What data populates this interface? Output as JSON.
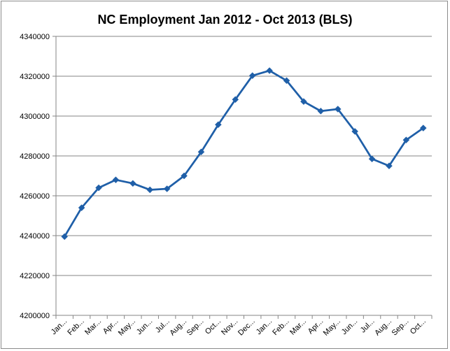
{
  "chart_data": {
    "type": "line",
    "title": "NC Employment Jan 2012 - Oct 2013 (BLS)",
    "xlabel": "",
    "ylabel": "",
    "ylim": [
      4200000,
      4340000
    ],
    "y_ticks": [
      4200000,
      4220000,
      4240000,
      4260000,
      4280000,
      4300000,
      4320000,
      4340000
    ],
    "y_tick_labels": [
      "4200000",
      "4220000",
      "4240000",
      "4260000",
      "4280000",
      "4300000",
      "4320000",
      "4340000"
    ],
    "grid": true,
    "legend": "none",
    "line_color": "#1f5fa8",
    "categories": [
      "Jan...",
      "Feb...",
      "Mar...",
      "Apr...",
      "May...",
      "Jun...",
      "Jul...",
      "Aug...",
      "Sep...",
      "Oct...",
      "Nov...",
      "Dec...",
      "Jan...",
      "Feb...",
      "Mar...",
      "Apr...",
      "May...",
      "Jun...",
      "Jul...",
      "Aug...",
      "Sep...",
      "Oct..."
    ],
    "series": [
      {
        "values": [
          4239500,
          4254000,
          4264000,
          4268000,
          4266200,
          4263000,
          4263500,
          4270000,
          4282000,
          4295700,
          4308300,
          4320300,
          4322800,
          4317800,
          4307300,
          4302500,
          4303500,
          4292300,
          4278500,
          4275000,
          4288000,
          4294000
        ]
      }
    ]
  }
}
